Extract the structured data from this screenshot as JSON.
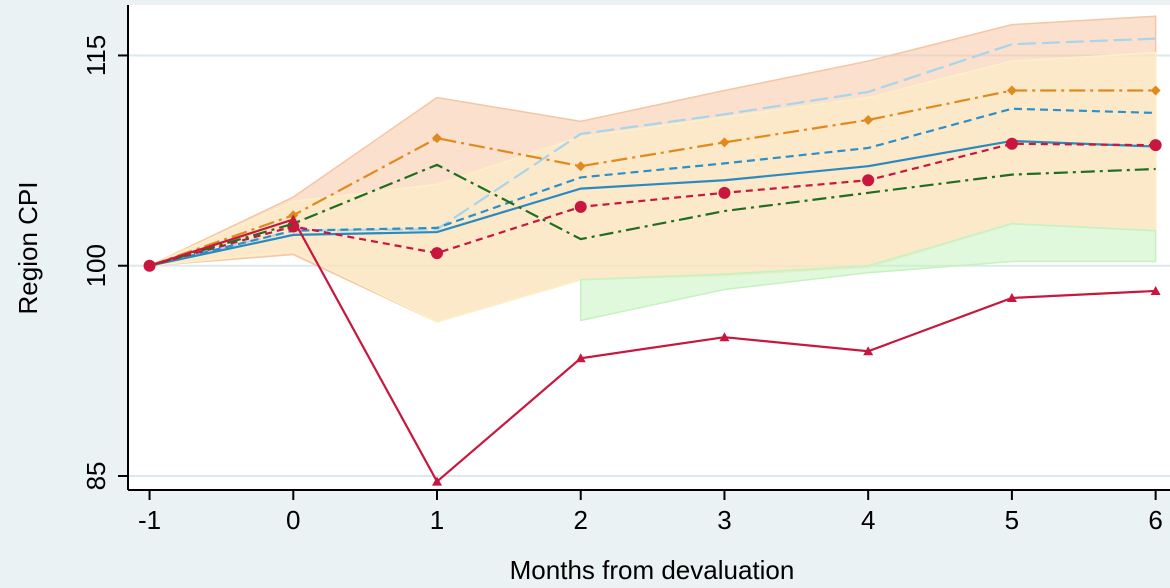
{
  "chart_data": {
    "type": "line",
    "x_label": "Months from devaluation",
    "y_label": "Region CPI",
    "x": [
      -1,
      0,
      1,
      2,
      3,
      4,
      5,
      6
    ],
    "xlim": [
      -1.15,
      6.1
    ],
    "xticks": [
      -1,
      0,
      1,
      2,
      3,
      4,
      5,
      6
    ],
    "ylim": [
      84,
      118.6
    ],
    "yticks": [
      85,
      100,
      115
    ],
    "grid": true,
    "bands": [
      {
        "color": "#f6c6a4",
        "upper": [
          100,
          104.9,
          112.0,
          110.3,
          112.5,
          114.6,
          117.2,
          117.8
        ],
        "lower": [
          100,
          100.8,
          96.0,
          99.0,
          99.4,
          99.9,
          103.0,
          102.5
        ]
      },
      {
        "color": "#fdf0c8",
        "upper": [
          100,
          104.6,
          105.8,
          109.2,
          110.6,
          112.0,
          114.6,
          115.2
        ],
        "lower": [
          100,
          101.0,
          96.0,
          99.0,
          99.3,
          99.9,
          103.0,
          102.5
        ]
      },
      {
        "color": "#c6f2c0",
        "upper": [
          null,
          null,
          null,
          99.0,
          99.4,
          100.0,
          103.0,
          102.5
        ],
        "lower": [
          null,
          null,
          null,
          96.1,
          98.3,
          99.5,
          100.3,
          100.3
        ]
      }
    ],
    "series": [
      {
        "color": "#a8d4ec",
        "dash": "18 6",
        "marker": "none",
        "values": [
          100,
          102.5,
          102.6,
          109.4,
          110.8,
          112.4,
          115.8,
          116.2
        ]
      },
      {
        "color": "#e08a1e",
        "dash": "16 5 3 5",
        "marker": "diamond",
        "values": [
          100,
          103.6,
          109.1,
          107.1,
          108.8,
          110.4,
          112.5,
          112.5
        ]
      },
      {
        "color": "#2c8fc9",
        "dash": "8 5",
        "marker": "none",
        "values": [
          100,
          102.5,
          102.7,
          106.3,
          107.3,
          108.4,
          111.2,
          110.9
        ]
      },
      {
        "color": "#2a8ac0",
        "dash": "none",
        "marker": "none",
        "values": [
          100,
          102.2,
          102.4,
          105.5,
          106.1,
          107.1,
          108.9,
          108.5
        ]
      },
      {
        "color": "#c8163f",
        "dash": "7 5",
        "marker": "circle",
        "values": [
          100,
          102.8,
          100.9,
          104.2,
          105.2,
          106.1,
          108.7,
          108.6
        ]
      },
      {
        "color": "#1f6e1f",
        "dash": "14 5 3 5",
        "marker": "none",
        "values": [
          100,
          103.0,
          107.2,
          101.9,
          103.9,
          105.2,
          106.5,
          106.9
        ]
      },
      {
        "color": "#c8163f",
        "dash": "none",
        "marker": "triangle",
        "values": [
          100,
          103.3,
          84.6,
          93.4,
          94.9,
          93.9,
          97.7,
          98.2
        ]
      }
    ]
  }
}
